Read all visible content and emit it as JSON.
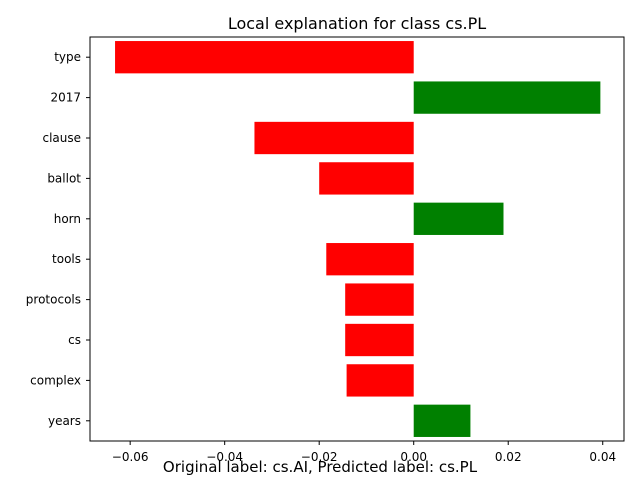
{
  "chart_data": {
    "type": "bar",
    "orientation": "horizontal",
    "title": "Local explanation for class cs.PL",
    "xlabel": "",
    "ylabel": "",
    "categories": [
      "type",
      "2017",
      "clause",
      "ballot",
      "horn",
      "tools",
      "protocols",
      "cs",
      "complex",
      "years"
    ],
    "values": [
      -0.0632,
      0.0395,
      -0.0337,
      -0.02,
      0.019,
      -0.0185,
      -0.0145,
      -0.0145,
      -0.0142,
      0.012
    ],
    "xlim": [
      -0.0685,
      0.0445
    ],
    "xticks": [
      -0.06,
      -0.04,
      -0.02,
      0.0,
      0.02,
      0.04
    ],
    "xtick_labels": [
      "−0.06",
      "−0.04",
      "−0.02",
      "0.00",
      "0.02",
      "0.04"
    ],
    "grid": false,
    "colors": {
      "positive": "#008000",
      "negative": "#ff0000"
    }
  },
  "caption": "Original label: cs.AI, Predicted label: cs.PL"
}
